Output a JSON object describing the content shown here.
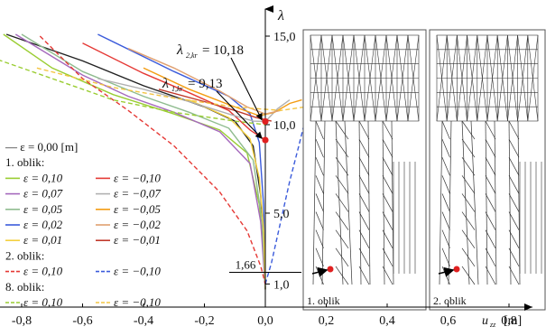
{
  "chart_data": {
    "type": "line",
    "xlabel": "u",
    "xlabel_sub": "zz",
    "xlabel_unit": "[m]",
    "ylabel": "λ",
    "xlim": [
      -0.88,
      0.97
    ],
    "ylim": [
      0.0,
      17.2
    ],
    "x_ticks": [
      {
        "v": -0.8,
        "t": "-0,8"
      },
      {
        "v": -0.6,
        "t": "-0,6"
      },
      {
        "v": -0.4,
        "t": "-0,4"
      },
      {
        "v": -0.2,
        "t": "-0,2"
      },
      {
        "v": 0.0,
        "t": "0,0"
      },
      {
        "v": 0.2,
        "t": "0,2"
      },
      {
        "v": 0.4,
        "t": "0,4"
      },
      {
        "v": 0.6,
        "t": "0,6"
      },
      {
        "v": 0.8,
        "t": "0,8"
      }
    ],
    "y_ticks": [
      {
        "v": 1.0,
        "t": "1,0"
      },
      {
        "v": 5.0,
        "t": "5,0"
      },
      {
        "v": 10.0,
        "t": "10,0"
      },
      {
        "v": 15.0,
        "t": "15,0"
      }
    ],
    "marker_166": {
      "v": 1.66,
      "t": "1,66"
    },
    "annotations": [
      {
        "sym": "λ",
        "sub": "2,kr",
        "text": "= 10,18",
        "y": 10.18
      },
      {
        "sym": "λ",
        "sub": "1,kr",
        "text": "= 9,13",
        "y": 9.13
      }
    ],
    "legend": [
      {
        "kind": "head",
        "text": "— ε = 0,00 [m]"
      },
      {
        "kind": "head",
        "text": "1. oblik:"
      },
      {
        "kind": "pair",
        "left": {
          "text": "ε = 0,10",
          "color": "#9acd32"
        },
        "right": {
          "text": "ε = −0,10",
          "color": "#e53935"
        }
      },
      {
        "kind": "pair",
        "left": {
          "text": "ε = 0,07",
          "color": "#a569bd"
        },
        "right": {
          "text": "ε = −0,07",
          "color": "#b0b0b0"
        }
      },
      {
        "kind": "pair",
        "left": {
          "text": "ε = 0,05",
          "color": "#8fbc8f"
        },
        "right": {
          "text": "ε = −0,05",
          "color": "#f39c12"
        }
      },
      {
        "kind": "pair",
        "left": {
          "text": "ε = 0,02",
          "color": "#3b5bdb"
        },
        "right": {
          "text": "ε = −0,02",
          "color": "#e0a070"
        }
      },
      {
        "kind": "pair",
        "left": {
          "text": "ε = 0,01",
          "color": "#f4d03f"
        },
        "right": {
          "text": "ε = −0,01",
          "color": "#c0392b"
        }
      },
      {
        "kind": "head",
        "text": "2. oblik:"
      },
      {
        "kind": "pair",
        "dash": true,
        "left": {
          "text": "ε = 0,10",
          "color": "#e53935"
        },
        "right": {
          "text": "ε = −0,10",
          "color": "#3b5bdb"
        }
      },
      {
        "kind": "head",
        "text": "8. oblik:"
      },
      {
        "kind": "pair",
        "dash": true,
        "left": {
          "text": "ε = 0,10",
          "color": "#9acd32"
        },
        "right": {
          "text": "ε = −0,10",
          "color": "#f4c542"
        }
      }
    ],
    "panels": [
      {
        "label": "1. oblik"
      },
      {
        "label": "2. oblik"
      }
    ],
    "series": [
      {
        "color": "#222222",
        "dash": false,
        "points": [
          [
            -0.85,
            15.1
          ],
          [
            -0.6,
            13.6
          ],
          [
            -0.4,
            12.2
          ],
          [
            -0.2,
            11.0
          ],
          [
            -0.1,
            10.2
          ],
          [
            -0.04,
            8.8
          ],
          [
            -0.015,
            6.0
          ],
          [
            -0.005,
            3.0
          ],
          [
            0,
            0.7
          ]
        ]
      },
      {
        "color": "#9acd32",
        "dash": false,
        "points": [
          [
            -0.86,
            15.1
          ],
          [
            -0.7,
            13.2
          ],
          [
            -0.5,
            11.7
          ],
          [
            -0.3,
            10.6
          ],
          [
            -0.15,
            9.7
          ],
          [
            -0.06,
            8.4
          ],
          [
            -0.02,
            5.5
          ],
          [
            -0.005,
            2.5
          ],
          [
            0,
            0.7
          ]
        ]
      },
      {
        "color": "#a569bd",
        "dash": false,
        "points": [
          [
            -0.82,
            15.1
          ],
          [
            -0.6,
            12.8
          ],
          [
            -0.45,
            11.6
          ],
          [
            -0.3,
            10.7
          ],
          [
            -0.15,
            9.6
          ],
          [
            -0.05,
            7.8
          ],
          [
            -0.015,
            4.5
          ],
          [
            0,
            0.7
          ]
        ]
      },
      {
        "color": "#8fbc8f",
        "dash": false,
        "points": [
          [
            -0.8,
            15.1
          ],
          [
            -0.6,
            13.0
          ],
          [
            -0.4,
            11.6
          ],
          [
            -0.25,
            10.7
          ],
          [
            -0.12,
            9.8
          ],
          [
            -0.04,
            8.0
          ],
          [
            -0.01,
            4.5
          ],
          [
            0,
            0.7
          ]
        ]
      },
      {
        "color": "#3b5bdb",
        "dash": false,
        "points": [
          [
            -0.55,
            15.1
          ],
          [
            -0.3,
            13.0
          ],
          [
            -0.12,
            11.6
          ],
          [
            -0.05,
            10.6
          ],
          [
            -0.02,
            9.0
          ],
          [
            -0.006,
            5.5
          ],
          [
            0,
            0.7
          ]
        ]
      },
      {
        "color": "#f4d03f",
        "dash": false,
        "points": [
          [
            -0.25,
            11.4
          ],
          [
            -0.12,
            10.4
          ],
          [
            -0.05,
            9.2
          ],
          [
            -0.02,
            7.0
          ],
          [
            -0.005,
            4.0
          ],
          [
            0,
            0.7
          ]
        ]
      },
      {
        "color": "#e53935",
        "dash": false,
        "points": [
          [
            -0.6,
            14.6
          ],
          [
            -0.4,
            12.9
          ],
          [
            -0.25,
            11.8
          ],
          [
            -0.12,
            10.8
          ],
          [
            -0.05,
            9.7
          ],
          [
            0,
            9.13
          ]
        ]
      },
      {
        "color": "#b0b0b0",
        "dash": false,
        "points": [
          [
            -0.55,
            12.6
          ],
          [
            -0.4,
            12.0
          ],
          [
            -0.25,
            11.3
          ],
          [
            -0.12,
            10.6
          ],
          [
            -0.04,
            10.2
          ],
          [
            0,
            10.18
          ],
          [
            0.04,
            10.9
          ],
          [
            0.08,
            11.4
          ]
        ]
      },
      {
        "color": "#f39c12",
        "dash": false,
        "points": [
          [
            -0.4,
            13.2
          ],
          [
            -0.25,
            12.0
          ],
          [
            -0.1,
            11.0
          ],
          [
            -0.02,
            10.5
          ],
          [
            0.03,
            10.7
          ],
          [
            0.08,
            11.2
          ],
          [
            0.12,
            11.4
          ]
        ]
      },
      {
        "color": "#e0a070",
        "dash": false,
        "points": [
          [
            -0.45,
            14.3
          ],
          [
            -0.3,
            13.2
          ],
          [
            -0.15,
            11.9
          ],
          [
            -0.06,
            11.0
          ],
          [
            0,
            10.6
          ],
          [
            0.05,
            10.8
          ]
        ]
      },
      {
        "color": "#c0392b",
        "dash": false,
        "points": [
          [
            -0.35,
            12.0
          ],
          [
            -0.2,
            11.3
          ],
          [
            -0.1,
            10.8
          ],
          [
            -0.03,
            10.4
          ],
          [
            0.02,
            10.2
          ]
        ]
      },
      {
        "color": "#e53935",
        "dash": true,
        "points": [
          [
            -0.74,
            15.0
          ],
          [
            -0.6,
            12.6
          ],
          [
            -0.45,
            10.8
          ],
          [
            -0.3,
            8.8
          ],
          [
            -0.15,
            6.2
          ],
          [
            -0.06,
            4.0
          ],
          [
            -0.015,
            2.0
          ],
          [
            0,
            1.0
          ]
        ]
      },
      {
        "color": "#3b5bdb",
        "dash": true,
        "points": [
          [
            0,
            1.0
          ],
          [
            0.02,
            2.2
          ],
          [
            0.05,
            4.5
          ],
          [
            0.08,
            6.8
          ],
          [
            0.11,
            8.8
          ],
          [
            0.13,
            10.2
          ]
        ]
      },
      {
        "color": "#9acd32",
        "dash": true,
        "points": [
          [
            -0.9,
            13.8
          ],
          [
            -0.7,
            12.6
          ],
          [
            -0.5,
            11.4
          ],
          [
            -0.3,
            10.7
          ],
          [
            -0.1,
            10.2
          ],
          [
            0,
            10.0
          ]
        ]
      },
      {
        "color": "#f4c542",
        "dash": true,
        "points": [
          [
            -0.75,
            13.2
          ],
          [
            -0.5,
            12.1
          ],
          [
            -0.3,
            11.5
          ],
          [
            -0.1,
            11.0
          ],
          [
            0.05,
            10.8
          ],
          [
            0.13,
            11.0
          ]
        ]
      }
    ]
  }
}
